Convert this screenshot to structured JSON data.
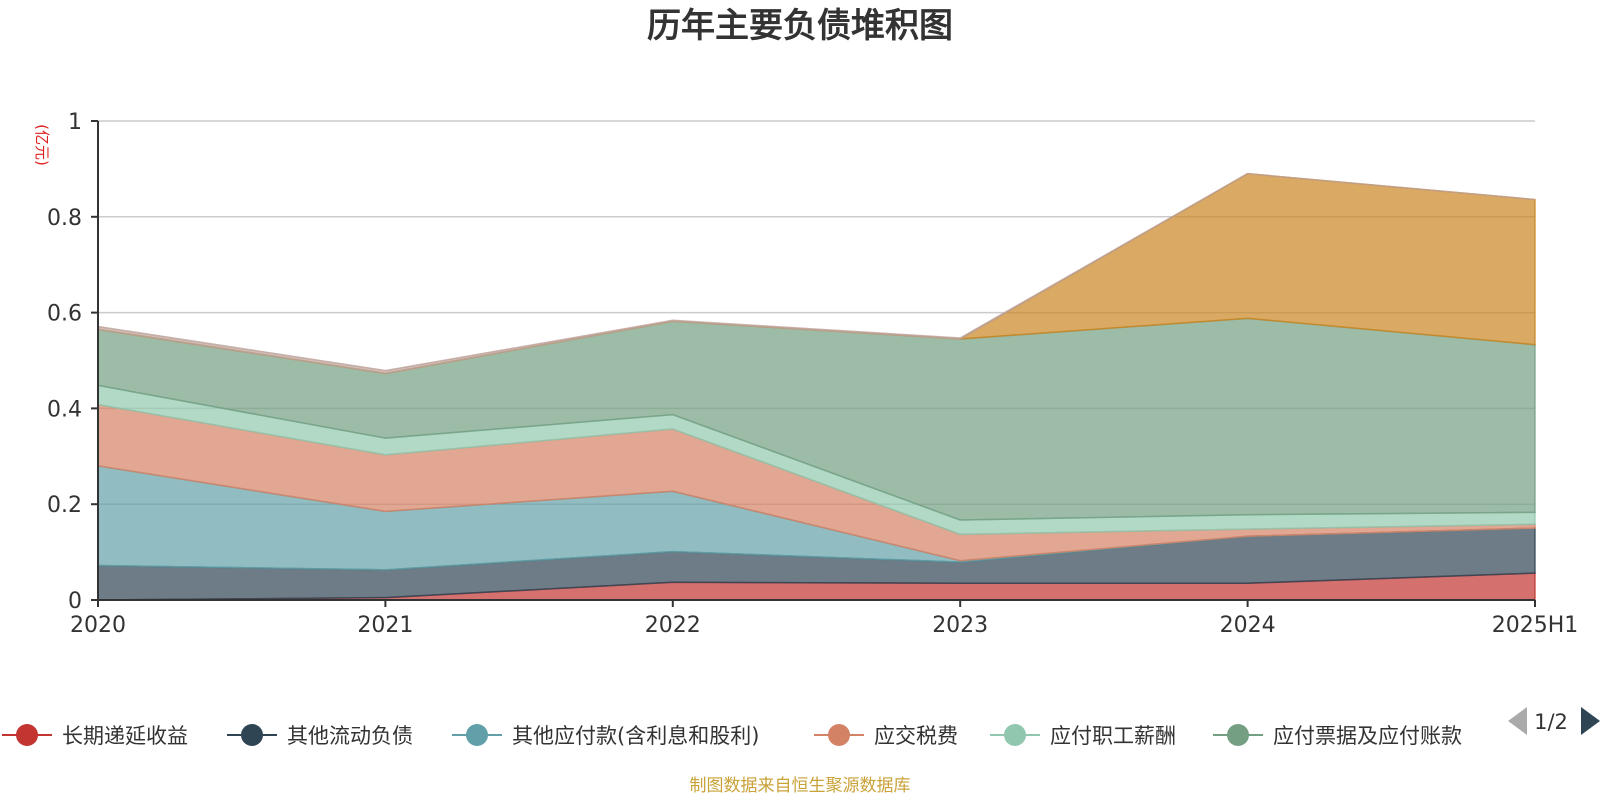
{
  "chart_data": {
    "type": "area",
    "stacked": true,
    "title": "历年主要负债堆积图",
    "unit_label": "(亿元)",
    "source_note": "制图数据来自恒生聚源数据库",
    "categories": [
      "2020",
      "2021",
      "2022",
      "2023",
      "2024",
      "2025H1"
    ],
    "ylim": [
      0,
      1
    ],
    "yticks": [
      "0",
      "0.2",
      "0.4",
      "0.6",
      "0.8",
      "1"
    ],
    "grid": true,
    "legend_position": "bottom",
    "legend_page": "1/2",
    "series": [
      {
        "name": "长期递延收益",
        "color": "#c23531",
        "values": [
          0.0,
          0.005,
          0.037,
          0.035,
          0.035,
          0.056
        ]
      },
      {
        "name": "其他流动负债",
        "color": "#2f4554",
        "values": [
          0.072,
          0.058,
          0.064,
          0.044,
          0.098,
          0.094
        ]
      },
      {
        "name": "其他应付款(含利息和股利)",
        "color": "#61a0a8",
        "values": [
          0.208,
          0.122,
          0.126,
          0.003,
          0.0,
          0.0
        ]
      },
      {
        "name": "应交税费",
        "color": "#d48265",
        "values": [
          0.128,
          0.118,
          0.13,
          0.055,
          0.015,
          0.008
        ]
      },
      {
        "name": "应付职工薪酬",
        "color": "#91c7ae",
        "values": [
          0.04,
          0.035,
          0.03,
          0.03,
          0.03,
          0.025
        ]
      },
      {
        "name": "应付票据及应付账款",
        "color": "#749f83",
        "values": [
          0.117,
          0.135,
          0.195,
          0.378,
          0.41,
          0.35
        ]
      },
      {
        "name": "",
        "color": "#ca8622",
        "values": [
          0.0,
          0.0,
          0.0,
          0.0,
          0.302,
          0.303
        ]
      },
      {
        "name": "",
        "color": "#bda29a",
        "values": [
          0.006,
          0.006,
          0.002,
          0.002,
          0.0,
          0.0
        ]
      }
    ]
  }
}
